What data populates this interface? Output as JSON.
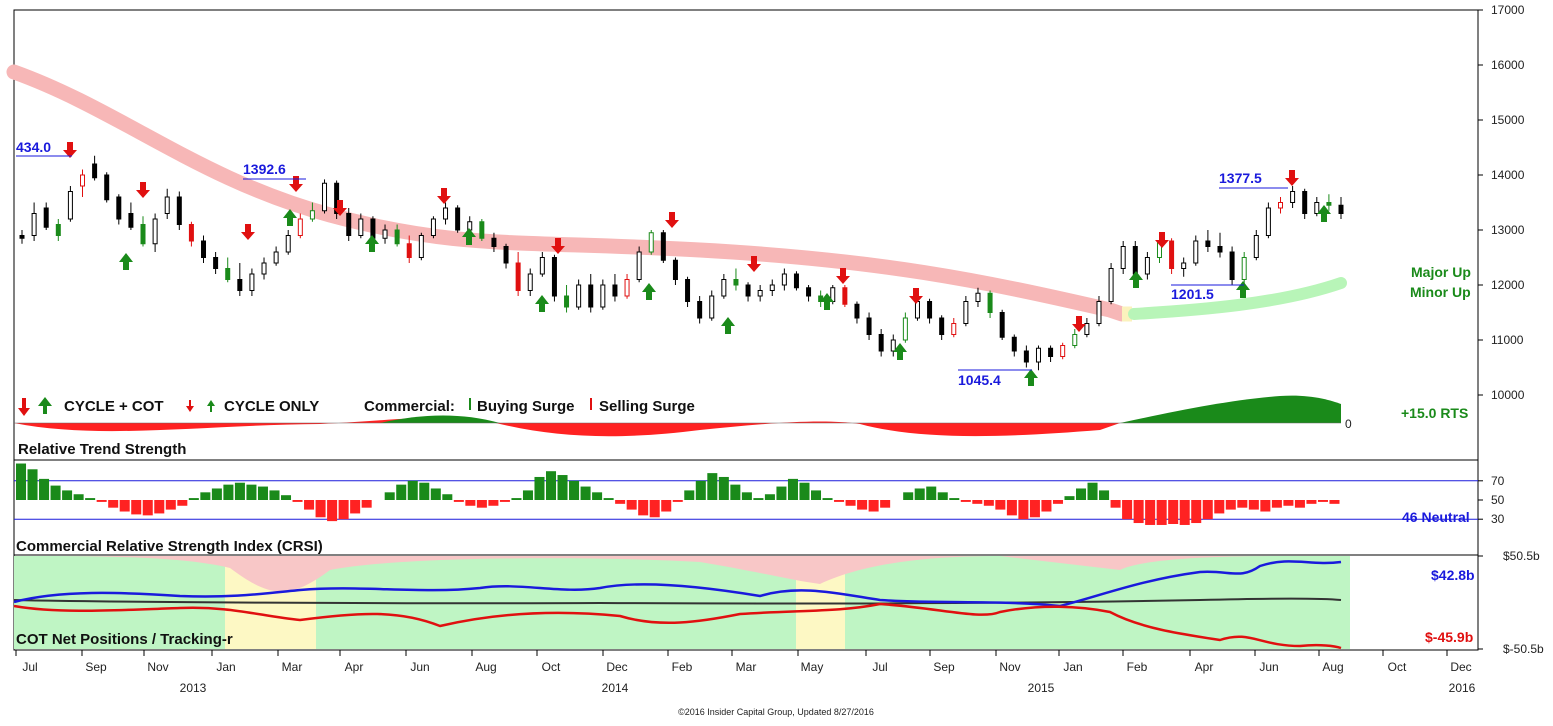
{
  "chart_data": {
    "type": "candlestick-multipanel",
    "main": {
      "y_ticks": [
        "17000",
        "16000",
        "15000",
        "14000",
        "13000",
        "12000",
        "11000",
        "10000"
      ],
      "ylim": [
        9500,
        17000
      ],
      "annotations": [
        "434.0",
        "1392.6",
        "1045.4",
        "1201.5",
        "1377.5"
      ],
      "trend_labels": [
        "Major Up",
        "Minor Up"
      ],
      "legend": {
        "cycle_cot": "CYCLE + COT",
        "cycle_only": "CYCLE ONLY",
        "commercial": "Commercial:",
        "buying": "Buying Surge",
        "selling": "Selling Surge"
      },
      "candles": [
        {
          "o": 12900,
          "h": 13000,
          "l": 12750,
          "c": 12850
        },
        {
          "o": 12900,
          "h": 13500,
          "l": 12800,
          "c": 13300
        },
        {
          "o": 13400,
          "h": 13500,
          "l": 13000,
          "c": 13050
        },
        {
          "o": 13100,
          "h": 13200,
          "l": 12800,
          "c": 12900
        },
        {
          "o": 13200,
          "h": 13800,
          "l": 13150,
          "c": 13700
        },
        {
          "o": 13800,
          "h": 14100,
          "l": 13600,
          "c": 14000
        },
        {
          "o": 14200,
          "h": 14350,
          "l": 13900,
          "c": 13950
        },
        {
          "o": 14000,
          "h": 14050,
          "l": 13500,
          "c": 13550
        },
        {
          "o": 13600,
          "h": 13650,
          "l": 13100,
          "c": 13200
        },
        {
          "o": 13300,
          "h": 13500,
          "l": 13000,
          "c": 13050
        },
        {
          "o": 13100,
          "h": 13250,
          "l": 12700,
          "c": 12750
        },
        {
          "o": 12750,
          "h": 13300,
          "l": 12600,
          "c": 13200
        },
        {
          "o": 13300,
          "h": 13750,
          "l": 13200,
          "c": 13600
        },
        {
          "o": 13600,
          "h": 13700,
          "l": 13000,
          "c": 13100
        },
        {
          "o": 13100,
          "h": 13150,
          "l": 12700,
          "c": 12800
        },
        {
          "o": 12800,
          "h": 12900,
          "l": 12400,
          "c": 12500
        },
        {
          "o": 12500,
          "h": 12600,
          "l": 12200,
          "c": 12300
        },
        {
          "o": 12300,
          "h": 12500,
          "l": 12050,
          "c": 12100
        },
        {
          "o": 12100,
          "h": 12400,
          "l": 11800,
          "c": 11900
        },
        {
          "o": 11900,
          "h": 12300,
          "l": 11800,
          "c": 12200
        },
        {
          "o": 12200,
          "h": 12500,
          "l": 12100,
          "c": 12400
        },
        {
          "o": 12400,
          "h": 12700,
          "l": 12350,
          "c": 12600
        },
        {
          "o": 12600,
          "h": 13000,
          "l": 12550,
          "c": 12900
        },
        {
          "o": 12900,
          "h": 13300,
          "l": 12850,
          "c": 13200
        },
        {
          "o": 13200,
          "h": 13500,
          "l": 13150,
          "c": 13350
        },
        {
          "o": 13350,
          "h": 13920,
          "l": 13300,
          "c": 13850
        },
        {
          "o": 13850,
          "h": 13900,
          "l": 13200,
          "c": 13300
        },
        {
          "o": 13300,
          "h": 13400,
          "l": 12800,
          "c": 12900
        },
        {
          "o": 12900,
          "h": 13300,
          "l": 12850,
          "c": 13200
        },
        {
          "o": 13200,
          "h": 13250,
          "l": 12800,
          "c": 12850
        },
        {
          "o": 12850,
          "h": 13100,
          "l": 12750,
          "c": 13000
        },
        {
          "o": 13000,
          "h": 13100,
          "l": 12700,
          "c": 12750
        },
        {
          "o": 12750,
          "h": 12900,
          "l": 12400,
          "c": 12500
        },
        {
          "o": 12500,
          "h": 12950,
          "l": 12450,
          "c": 12900
        },
        {
          "o": 12900,
          "h": 13250,
          "l": 12850,
          "c": 13200
        },
        {
          "o": 13200,
          "h": 13500,
          "l": 13100,
          "c": 13400
        },
        {
          "o": 13400,
          "h": 13450,
          "l": 12950,
          "c": 13000
        },
        {
          "o": 13000,
          "h": 13250,
          "l": 12800,
          "c": 13150
        },
        {
          "o": 13150,
          "h": 13200,
          "l": 12800,
          "c": 12850
        },
        {
          "o": 12850,
          "h": 12950,
          "l": 12600,
          "c": 12700
        },
        {
          "o": 12700,
          "h": 12750,
          "l": 12300,
          "c": 12400
        },
        {
          "o": 12400,
          "h": 12600,
          "l": 11800,
          "c": 11900
        },
        {
          "o": 11900,
          "h": 12300,
          "l": 11800,
          "c": 12200
        },
        {
          "o": 12200,
          "h": 12600,
          "l": 12150,
          "c": 12500
        },
        {
          "o": 12500,
          "h": 12550,
          "l": 11700,
          "c": 11800
        },
        {
          "o": 11800,
          "h": 12000,
          "l": 11500,
          "c": 11600
        },
        {
          "o": 11600,
          "h": 12100,
          "l": 11550,
          "c": 12000
        },
        {
          "o": 12000,
          "h": 12200,
          "l": 11500,
          "c": 11600
        },
        {
          "o": 11600,
          "h": 12100,
          "l": 11550,
          "c": 12000
        },
        {
          "o": 12000,
          "h": 12200,
          "l": 11700,
          "c": 11800
        },
        {
          "o": 11800,
          "h": 12200,
          "l": 11750,
          "c": 12100
        },
        {
          "o": 12100,
          "h": 12700,
          "l": 12050,
          "c": 12600
        },
        {
          "o": 12600,
          "h": 13000,
          "l": 12550,
          "c": 12950
        },
        {
          "o": 12950,
          "h": 13000,
          "l": 12400,
          "c": 12450
        },
        {
          "o": 12450,
          "h": 12500,
          "l": 12000,
          "c": 12100
        },
        {
          "o": 12100,
          "h": 12150,
          "l": 11600,
          "c": 11700
        },
        {
          "o": 11700,
          "h": 11800,
          "l": 11300,
          "c": 11400
        },
        {
          "o": 11400,
          "h": 11900,
          "l": 11350,
          "c": 11800
        },
        {
          "o": 11800,
          "h": 12200,
          "l": 11750,
          "c": 12100
        },
        {
          "o": 12100,
          "h": 12300,
          "l": 11900,
          "c": 12000
        },
        {
          "o": 12000,
          "h": 12050,
          "l": 11700,
          "c": 11800
        },
        {
          "o": 11800,
          "h": 12000,
          "l": 11700,
          "c": 11900
        },
        {
          "o": 11900,
          "h": 12100,
          "l": 11800,
          "c": 12000
        },
        {
          "o": 12000,
          "h": 12300,
          "l": 11900,
          "c": 12200
        },
        {
          "o": 12200,
          "h": 12250,
          "l": 11900,
          "c": 11950
        },
        {
          "o": 11950,
          "h": 12000,
          "l": 11700,
          "c": 11800
        },
        {
          "o": 11800,
          "h": 11900,
          "l": 11600,
          "c": 11700
        },
        {
          "o": 11700,
          "h": 12000,
          "l": 11650,
          "c": 11950
        },
        {
          "o": 11950,
          "h": 12000,
          "l": 11600,
          "c": 11650
        },
        {
          "o": 11650,
          "h": 11700,
          "l": 11300,
          "c": 11400
        },
        {
          "o": 11400,
          "h": 11500,
          "l": 11000,
          "c": 11100
        },
        {
          "o": 11100,
          "h": 11200,
          "l": 10700,
          "c": 10800
        },
        {
          "o": 10800,
          "h": 11100,
          "l": 10700,
          "c": 11000
        },
        {
          "o": 11000,
          "h": 11500,
          "l": 10950,
          "c": 11400
        },
        {
          "o": 11400,
          "h": 11800,
          "l": 11350,
          "c": 11700
        },
        {
          "o": 11700,
          "h": 11750,
          "l": 11300,
          "c": 11400
        },
        {
          "o": 11400,
          "h": 11450,
          "l": 11000,
          "c": 11100
        },
        {
          "o": 11100,
          "h": 11400,
          "l": 11050,
          "c": 11300
        },
        {
          "o": 11300,
          "h": 11800,
          "l": 11250,
          "c": 11700
        },
        {
          "o": 11700,
          "h": 11950,
          "l": 11600,
          "c": 11850
        },
        {
          "o": 11850,
          "h": 11900,
          "l": 11400,
          "c": 11500
        },
        {
          "o": 11500,
          "h": 11550,
          "l": 11000,
          "c": 11050
        },
        {
          "o": 11050,
          "h": 11100,
          "l": 10700,
          "c": 10800
        },
        {
          "o": 10800,
          "h": 10900,
          "l": 10500,
          "c": 10600
        },
        {
          "o": 10600,
          "h": 10900,
          "l": 10450,
          "c": 10850
        },
        {
          "o": 10850,
          "h": 10900,
          "l": 10600,
          "c": 10700
        },
        {
          "o": 10700,
          "h": 10950,
          "l": 10650,
          "c": 10900
        },
        {
          "o": 10900,
          "h": 11200,
          "l": 10850,
          "c": 11100
        },
        {
          "o": 11100,
          "h": 11400,
          "l": 11050,
          "c": 11300
        },
        {
          "o": 11300,
          "h": 11800,
          "l": 11250,
          "c": 11700
        },
        {
          "o": 11700,
          "h": 12400,
          "l": 11650,
          "c": 12300
        },
        {
          "o": 12300,
          "h": 12800,
          "l": 12200,
          "c": 12700
        },
        {
          "o": 12700,
          "h": 12800,
          "l": 12100,
          "c": 12200
        },
        {
          "o": 12200,
          "h": 12600,
          "l": 12100,
          "c": 12500
        },
        {
          "o": 12500,
          "h": 12900,
          "l": 12400,
          "c": 12800
        },
        {
          "o": 12800,
          "h": 12850,
          "l": 12200,
          "c": 12300
        },
        {
          "o": 12300,
          "h": 12500,
          "l": 12150,
          "c": 12400
        },
        {
          "o": 12400,
          "h": 12900,
          "l": 12350,
          "c": 12800
        },
        {
          "o": 12800,
          "h": 13000,
          "l": 12600,
          "c": 12700
        },
        {
          "o": 12700,
          "h": 12950,
          "l": 12500,
          "c": 12600
        },
        {
          "o": 12600,
          "h": 12700,
          "l": 12000,
          "c": 12100
        },
        {
          "o": 12100,
          "h": 12600,
          "l": 12000,
          "c": 12500
        },
        {
          "o": 12500,
          "h": 13000,
          "l": 12450,
          "c": 12900
        },
        {
          "o": 12900,
          "h": 13500,
          "l": 12850,
          "c": 13400
        },
        {
          "o": 13400,
          "h": 13600,
          "l": 13300,
          "c": 13500
        },
        {
          "o": 13500,
          "h": 13800,
          "l": 13400,
          "c": 13700
        },
        {
          "o": 13700,
          "h": 13750,
          "l": 13200,
          "c": 13300
        },
        {
          "o": 13300,
          "h": 13600,
          "l": 13250,
          "c": 13500
        },
        {
          "o": 13500,
          "h": 13650,
          "l": 13350,
          "c": 13450
        },
        {
          "o": 13450,
          "h": 13600,
          "l": 13200,
          "c": 13300
        }
      ]
    },
    "rts": {
      "label": "Relative Trend Strength",
      "value_label": "+15.0 RTS",
      "zero": "0"
    },
    "crsi": {
      "label": "Commercial Relative Strength Index (CRSI)",
      "ticks": [
        "70",
        "50",
        "30"
      ],
      "neutral": "46 Neutral",
      "values": [
        88,
        82,
        72,
        65,
        60,
        56,
        52,
        48,
        42,
        38,
        35,
        34,
        36,
        40,
        44,
        52,
        58,
        62,
        66,
        68,
        66,
        64,
        60,
        55,
        48,
        40,
        32,
        28,
        30,
        36,
        42,
        50,
        58,
        66,
        70,
        68,
        62,
        56,
        48,
        44,
        42,
        44,
        48,
        52,
        60,
        74,
        80,
        76,
        70,
        64,
        58,
        52,
        46,
        40,
        34,
        32,
        38,
        48,
        60,
        70,
        78,
        74,
        66,
        58,
        52,
        56,
        64,
        72,
        68,
        60,
        52,
        48,
        44,
        40,
        38,
        42,
        50,
        58,
        62,
        64,
        58,
        52,
        48,
        46,
        44,
        40,
        34,
        30,
        32,
        38,
        46,
        54,
        62,
        68,
        60,
        42,
        30,
        26,
        24,
        24,
        25,
        24,
        26,
        30,
        36,
        40,
        42,
        40,
        38,
        42,
        44,
        42,
        46,
        48,
        46
      ]
    },
    "cot": {
      "label": "COT Net Positions / Tracking-r",
      "ticks": [
        "$50.5b",
        "$-50.5b"
      ],
      "ylim": [
        -50.5,
        50.5
      ],
      "commercial_label": "$-45.9b",
      "speculator_label": "$42.8b"
    },
    "x_axis": {
      "months": [
        "Jul",
        "Sep",
        "Nov",
        "Jan",
        "Mar",
        "Apr",
        "Jun",
        "Aug",
        "Oct",
        "Dec",
        "Feb",
        "Mar",
        "May",
        "Jul",
        "Sep",
        "Nov",
        "Jan",
        "Feb",
        "Apr",
        "Jun",
        "Aug",
        "Oct",
        "Dec"
      ],
      "years": [
        "2013",
        "2014",
        "2015",
        "2016"
      ]
    },
    "copyright": "©2016 Insider Capital Group, Updated 8/27/2016"
  }
}
